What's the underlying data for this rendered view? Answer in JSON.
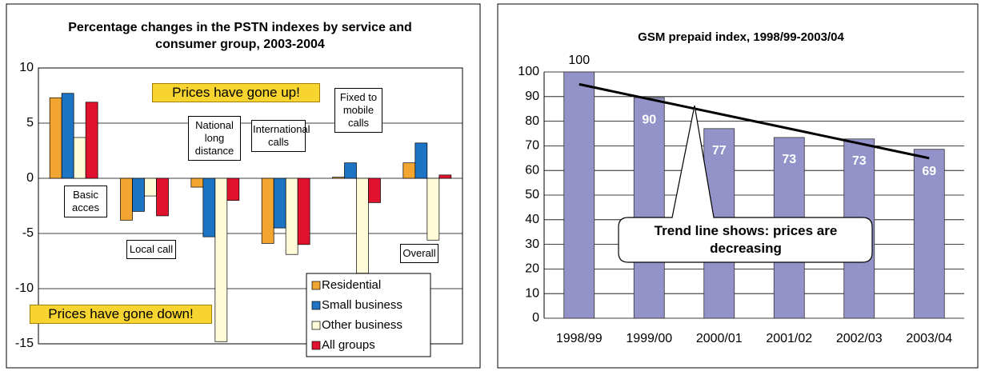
{
  "chart_data": [
    {
      "type": "bar",
      "title": "Percentage changes in the PSTN indexes by service and consumer group, 2003-2004",
      "categories": [
        "Basic acces",
        "Local call",
        "National long distance",
        "International calls",
        "Fixed to mobile calls",
        "Overall"
      ],
      "series": [
        {
          "name": "Residential",
          "color": "#f2a531",
          "values": [
            7.3,
            -3.8,
            -0.8,
            -5.9,
            0.1,
            1.4
          ]
        },
        {
          "name": "Small business",
          "color": "#1d74c4",
          "values": [
            7.7,
            -3.0,
            -5.3,
            -4.5,
            1.4,
            3.2
          ]
        },
        {
          "name": "Other business",
          "color": "#fffbd8",
          "values": [
            3.7,
            -1.6,
            -14.8,
            -6.9,
            -8.6,
            -5.6
          ]
        },
        {
          "name": "All groups",
          "color": "#e0122e",
          "values": [
            6.9,
            -3.4,
            -2.0,
            -6.0,
            -2.2,
            0.3
          ]
        }
      ],
      "ylim": [
        -15,
        10
      ],
      "yticks": [
        -15,
        -10,
        -5,
        0,
        5,
        10
      ],
      "grid": true,
      "legend": "bottom-right",
      "annotations": [
        "Prices have gone up!",
        "Prices have gone down!"
      ]
    },
    {
      "type": "bar",
      "title": "GSM prepaid index, 1998/99-2003/04",
      "categories": [
        "1998/99",
        "1999/00",
        "2000/01",
        "2001/02",
        "2002/03",
        "2003/04"
      ],
      "values": [
        100,
        89.6,
        77,
        73.4,
        72.8,
        68.6
      ],
      "value_labels": [
        "100",
        "90",
        "77",
        "73",
        "73",
        "69"
      ],
      "color": "#9393c9",
      "trend_line": [
        95,
        65
      ],
      "ylim": [
        0,
        100
      ],
      "yticks": [
        0,
        10,
        20,
        30,
        40,
        50,
        60,
        70,
        80,
        90,
        100
      ],
      "grid": true,
      "annotations": [
        "Trend line shows: prices are decreasing"
      ]
    }
  ]
}
